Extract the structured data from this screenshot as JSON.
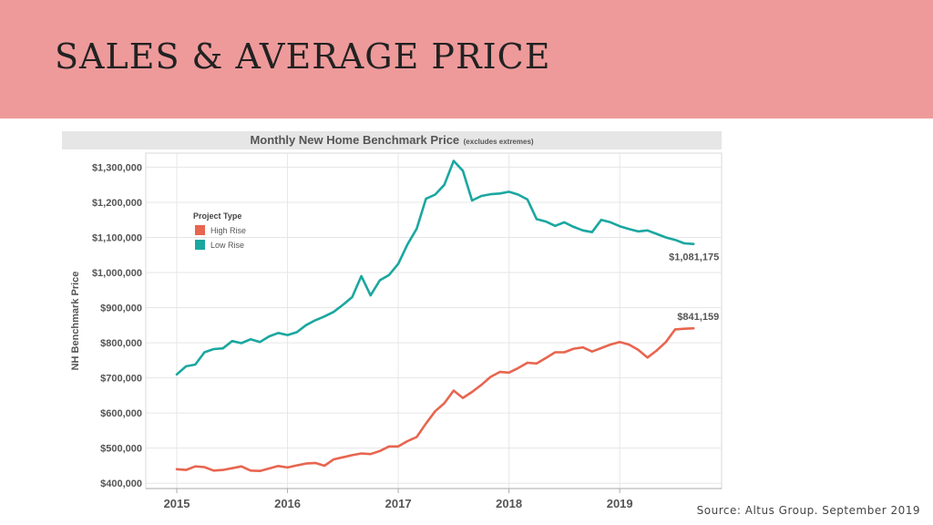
{
  "slide": {
    "title": "SALES & AVERAGE PRICE",
    "banner_color": "#ee9a9a",
    "source": "Source: Altus Group. September 2019"
  },
  "chart_data": {
    "type": "line",
    "title": "Monthly New Home Benchmark Price",
    "subtitle": "(excludes extremes)",
    "xlabel": "",
    "ylabel": "NH Benchmark Price",
    "x_ticks": [
      "2015",
      "2016",
      "2017",
      "2018",
      "2019"
    ],
    "x_range": [
      2014.72,
      2019.92
    ],
    "y_ticks": [
      "$400,000",
      "$500,000",
      "$600,000",
      "$700,000",
      "$800,000",
      "$900,000",
      "$1,000,000",
      "$1,100,000",
      "$1,200,000",
      "$1,300,000"
    ],
    "ylim": [
      385000,
      1340000
    ],
    "grid": true,
    "legend": {
      "title": "Project Type",
      "placement": "top-left"
    },
    "series": [
      {
        "name": "High Rise",
        "color": "#e8654f",
        "end_label": "$841,159",
        "x": [
          "2015-01",
          "2015-02",
          "2015-03",
          "2015-04",
          "2015-05",
          "2015-06",
          "2015-07",
          "2015-08",
          "2015-09",
          "2015-10",
          "2015-11",
          "2015-12",
          "2016-01",
          "2016-02",
          "2016-03",
          "2016-04",
          "2016-05",
          "2016-06",
          "2016-07",
          "2016-08",
          "2016-09",
          "2016-10",
          "2016-11",
          "2016-12",
          "2017-01",
          "2017-02",
          "2017-03",
          "2017-04",
          "2017-05",
          "2017-06",
          "2017-07",
          "2017-08",
          "2017-09",
          "2017-10",
          "2017-11",
          "2017-12",
          "2018-01",
          "2018-02",
          "2018-03",
          "2018-04",
          "2018-05",
          "2018-06",
          "2018-07",
          "2018-08",
          "2018-09",
          "2018-10",
          "2018-11",
          "2018-12",
          "2019-01",
          "2019-02",
          "2019-03",
          "2019-04",
          "2019-05",
          "2019-06",
          "2019-07",
          "2019-08",
          "2019-09"
        ],
        "values": [
          440000,
          438000,
          448000,
          446000,
          436000,
          438000,
          443000,
          448000,
          436000,
          435000,
          442000,
          449000,
          445000,
          451000,
          456000,
          458000,
          450000,
          468000,
          474000,
          480000,
          485000,
          483000,
          492000,
          505000,
          505000,
          520000,
          532000,
          570000,
          605000,
          628000,
          664000,
          643000,
          660000,
          680000,
          703000,
          717000,
          715000,
          728000,
          743000,
          741000,
          757000,
          773000,
          773000,
          783000,
          787000,
          775000,
          785000,
          795000,
          802000,
          795000,
          780000,
          758000,
          778000,
          802000,
          838000,
          840000,
          841159
        ]
      },
      {
        "name": "Low Rise",
        "color": "#1aa7a0",
        "end_label": "$1,081,175",
        "x": [
          "2015-01",
          "2015-02",
          "2015-03",
          "2015-04",
          "2015-05",
          "2015-06",
          "2015-07",
          "2015-08",
          "2015-09",
          "2015-10",
          "2015-11",
          "2015-12",
          "2016-01",
          "2016-02",
          "2016-03",
          "2016-04",
          "2016-05",
          "2016-06",
          "2016-07",
          "2016-08",
          "2016-09",
          "2016-10",
          "2016-11",
          "2016-12",
          "2017-01",
          "2017-02",
          "2017-03",
          "2017-04",
          "2017-05",
          "2017-06",
          "2017-07",
          "2017-08",
          "2017-09",
          "2017-10",
          "2017-11",
          "2017-12",
          "2018-01",
          "2018-02",
          "2018-03",
          "2018-04",
          "2018-05",
          "2018-06",
          "2018-07",
          "2018-08",
          "2018-09",
          "2018-10",
          "2018-11",
          "2018-12",
          "2019-01",
          "2019-02",
          "2019-03",
          "2019-04",
          "2019-05",
          "2019-06",
          "2019-07",
          "2019-08",
          "2019-09"
        ],
        "values": [
          710000,
          733000,
          738000,
          773000,
          782000,
          784000,
          805000,
          799000,
          810000,
          802000,
          818000,
          828000,
          822000,
          830000,
          850000,
          864000,
          875000,
          888000,
          908000,
          930000,
          990000,
          935000,
          978000,
          993000,
          1025000,
          1080000,
          1125000,
          1210000,
          1222000,
          1250000,
          1318000,
          1290000,
          1205000,
          1218000,
          1223000,
          1225000,
          1230000,
          1222000,
          1208000,
          1152000,
          1145000,
          1133000,
          1143000,
          1130000,
          1120000,
          1115000,
          1150000,
          1143000,
          1132000,
          1124000,
          1117000,
          1120000,
          1110000,
          1100000,
          1093000,
          1083000,
          1081175
        ]
      }
    ]
  }
}
